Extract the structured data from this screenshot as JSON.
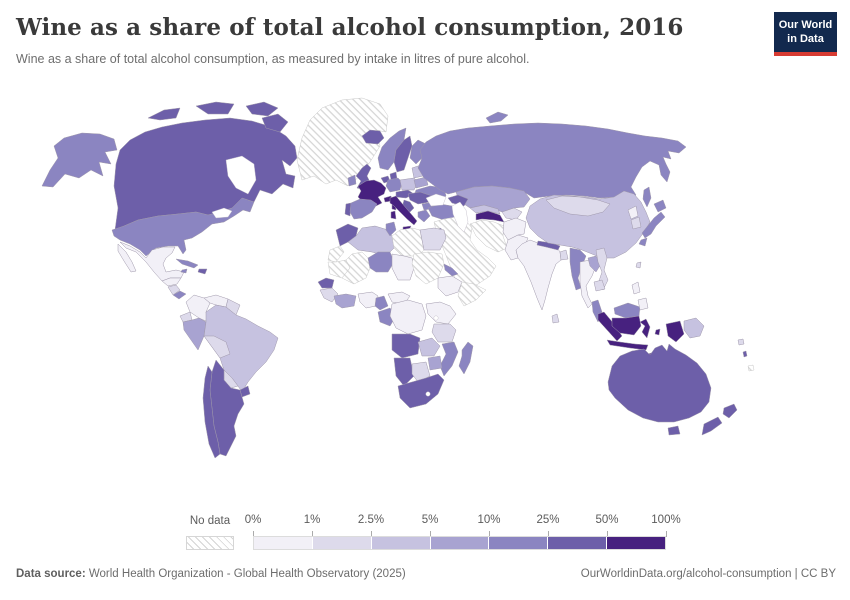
{
  "header": {
    "title": "Wine as a share of total alcohol consumption, 2016",
    "subtitle": "Wine as a share of total alcohol consumption, as measured by intake in litres of pure alcohol.",
    "logo_line1": "Our World",
    "logo_line2": "in Data",
    "logo_bg": "#12294e",
    "logo_accent": "#d73b32"
  },
  "legend": {
    "no_data_label": "No data",
    "tick_labels": [
      "0%",
      "1%",
      "2.5%",
      "5%",
      "10%",
      "25%",
      "50%",
      "100%"
    ]
  },
  "footer": {
    "datasource_label": "Data source:",
    "datasource_text": " World Health Organization - Global Health Observatory (2025)",
    "link_text": "OurWorldinData.org/alcohol-consumption | CC BY"
  },
  "chart_data": {
    "type": "choropleth_world_map",
    "title": "Wine as a share of total alcohol consumption, 2016",
    "metric": "Wine as a share of total alcohol consumption",
    "unit": "%",
    "year": 2016,
    "legend_bins": [
      {
        "range": "0-1",
        "color": "#f2f0f7"
      },
      {
        "range": "1-2.5",
        "color": "#dddaeb"
      },
      {
        "range": "2.5-5",
        "color": "#c6c2e0"
      },
      {
        "range": "5-10",
        "color": "#a8a3d1"
      },
      {
        "range": "10-25",
        "color": "#8b85c1"
      },
      {
        "range": "25-50",
        "color": "#6d5fa9"
      },
      {
        "range": "50-100",
        "color": "#47217f"
      },
      {
        "range": "no-data",
        "color": null,
        "pattern": "hatched"
      }
    ],
    "regions": {
      "alaska": "10-25",
      "canada": "25-50",
      "greenland": "no-data",
      "iceland": "25-50",
      "usa": "10-25",
      "mexico": "0-1",
      "baja-california": "0-1",
      "guatemala-honduras": "0-1",
      "nicaragua-costa-rica": "1-2.5",
      "panama": "10-25",
      "cuba": "10-25",
      "jamaica": "10-25",
      "hispaniola": "25-50",
      "colombia": "0-1",
      "venezuela": "0-1",
      "guyanas": "1-2.5",
      "ecuador": "1-2.5",
      "peru": "5-10",
      "brazil": "2.5-5",
      "bolivia": "1-2.5",
      "paraguay": "1-2.5",
      "uruguay": "25-50",
      "argentina": "25-50",
      "chile": "25-50",
      "ireland": "10-25",
      "united-kingdom": "25-50",
      "portugal": "25-50",
      "spain": "10-25",
      "france": "50-100",
      "corsica": "50-100",
      "benelux": "25-50",
      "germany": "10-25",
      "denmark": "25-50",
      "norway": "10-25",
      "sweden": "25-50",
      "finland": "10-25",
      "baltics": "2.5-5",
      "poland": "2.5-5",
      "belarus": "5-10",
      "ukraine": "10-25",
      "czechia-austria": "25-50",
      "switzerland": "50-100",
      "hungary-romania": "25-50",
      "balkans": "25-50",
      "bulgaria": "10-25",
      "greece": "10-25",
      "italy": "50-100",
      "sicily": "50-100",
      "sardinia": "50-100",
      "russia": "10-25",
      "novaya-zemlya": "10-25",
      "sakhalin": "10-25",
      "kazakhstan": "5-10",
      "uzbekistan": "2.5-5",
      "turkmenistan": "50-100",
      "kyrgyzstan-tajikistan": "1-2.5",
      "caucasus": "25-50",
      "turkey": "10-25",
      "israel-jordan": "10-25",
      "middle-east": "no-data",
      "iran": "no-data",
      "afghanistan": "0-1",
      "pakistan": "0-1",
      "india": "0-1",
      "nepal": "25-50",
      "bangladesh": "1-2.5",
      "sri-lanka": "1-2.5",
      "china": "2.5-5",
      "mongolia": "1-2.5",
      "north-korea": "0-1",
      "south-korea": "1-2.5",
      "japan": "10-25",
      "taiwan": "1-2.5",
      "myanmar": "10-25",
      "thailand": "0-1",
      "laos": "5-10",
      "vietnam": "1-2.5",
      "cambodia": "1-2.5",
      "malaysia": "10-25",
      "indonesia": "50-100",
      "philippines": "0-1",
      "papua-new-guinea": "2.5-5",
      "australia": "25-50",
      "new-zealand": "25-50",
      "fiji": "1-2.5",
      "vanuatu": "25-50",
      "new-caledonia": "no-data",
      "morocco": "25-50",
      "western-sahara": "no-data",
      "algeria": "2.5-5",
      "tunisia": "10-25",
      "libya": "no-data",
      "egypt": "1-2.5",
      "mauritania": "no-data",
      "mali": "no-data",
      "senegal": "25-50",
      "guinea-group": "1-2.5",
      "cote-divoire-ghana": "5-10",
      "nigeria": "0-1",
      "niger": "10-25",
      "chad": "0-1",
      "sudan": "no-data",
      "eritrea-djibouti": "10-25",
      "ethiopia": "0-1",
      "somalia": "no-data",
      "cameroon": "10-25",
      "central-african-republic": "0-1",
      "gabon-congo": "10-25",
      "dr-congo": "0-1",
      "uganda-kenya": "0-1",
      "tanzania": "1-2.5",
      "angola": "25-50",
      "zambia": "2.5-5",
      "mozambique": "10-25",
      "zimbabwe": "5-10",
      "namibia": "25-50",
      "botswana": "1-2.5",
      "south-africa": "25-50",
      "madagascar": "10-25"
    }
  }
}
